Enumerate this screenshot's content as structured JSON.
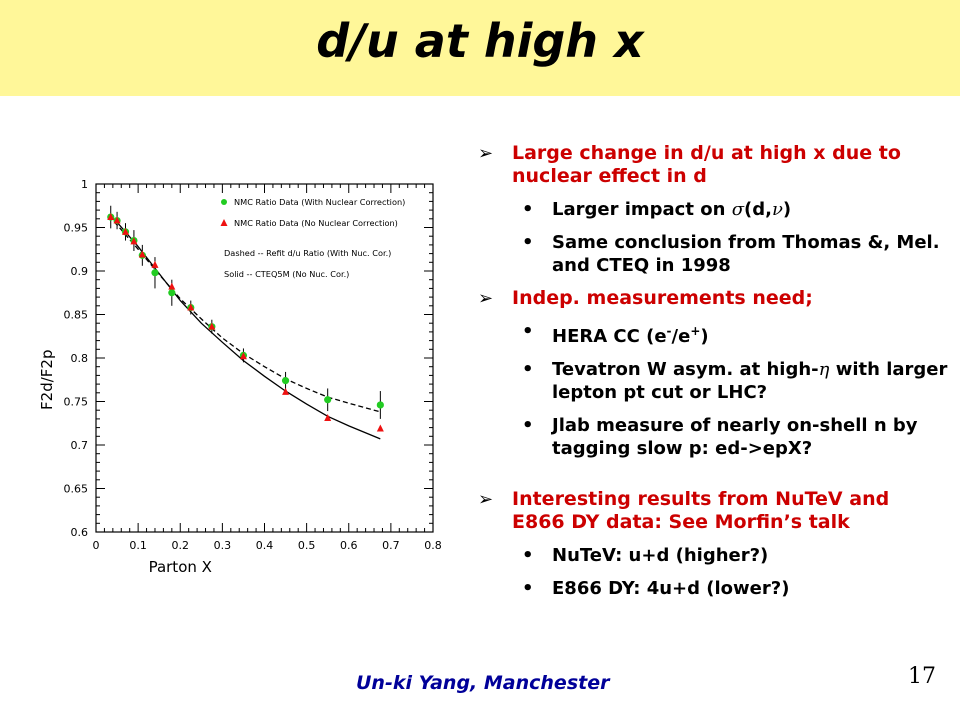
{
  "slide": {
    "title": "d/u at high x",
    "footer": "Un-ki Yang, Manchester",
    "page_number": "17"
  },
  "bullets": [
    {
      "level": 1,
      "parts": [
        {
          "t": "Large change  in d/u at high x due to nuclear effect in d"
        }
      ]
    },
    {
      "level": 2,
      "parts": [
        {
          "t": "Larger impact on "
        },
        {
          "t": "σ",
          "sym": true
        },
        {
          "t": "(d,"
        },
        {
          "t": "ν",
          "sym": true
        },
        {
          "t": ")"
        }
      ]
    },
    {
      "level": 2,
      "parts": [
        {
          "t": "Same conclusion from Thomas &, Mel. and CTEQ in 1998"
        }
      ]
    },
    {
      "level": 1,
      "parts": [
        {
          "t": "Indep. measurements need;"
        }
      ]
    },
    {
      "level": 2,
      "parts": [
        {
          "t": "HERA CC (e"
        },
        {
          "t": "-",
          "sup": true
        },
        {
          "t": "/e"
        },
        {
          "t": "+",
          "sup": true
        },
        {
          "t": ")"
        }
      ]
    },
    {
      "level": 2,
      "parts": [
        {
          "t": "Tevatron W asym. at high-"
        },
        {
          "t": "η",
          "sym": true
        },
        {
          "t": " with larger lepton pt cut or LHC?"
        }
      ]
    },
    {
      "level": 2,
      "parts": [
        {
          "t": "Jlab measure of nearly on-shell n by tagging slow p: ed->epX?"
        }
      ]
    },
    {
      "level": "gap"
    },
    {
      "level": 1,
      "parts": [
        {
          "t": "Interesting results from NuTeV and E866 DY data: See Morfin’s talk"
        }
      ]
    },
    {
      "level": 2,
      "parts": [
        {
          "t": "NuTeV: u+d (higher?)"
        }
      ]
    },
    {
      "level": 2,
      "parts": [
        {
          "t": "E866 DY: 4u+d (lower?)"
        }
      ]
    }
  ],
  "chart_data": {
    "type": "scatter",
    "xlabel": "Parton X",
    "ylabel": "F2d/F2p",
    "xlim": [
      0,
      0.8
    ],
    "ylim": [
      0.6,
      1.0
    ],
    "xticks": [
      "0",
      "0.1",
      "0.2",
      "0.3",
      "0.4",
      "0.5",
      "0.6",
      "0.7",
      "0.8"
    ],
    "yticks": [
      "0.6",
      "0.65",
      "0.7",
      "0.75",
      "0.8",
      "0.85",
      "0.9",
      "0.95",
      "1"
    ],
    "legend": [
      {
        "label": "NMC Ratio Data (With Nuclear Correction)",
        "marker": "circle",
        "color": "#22cc22"
      },
      {
        "label": "NMC Ratio Data (No Nuclear Correction)",
        "marker": "triangle",
        "color": "#ee1111"
      },
      {
        "label": "Dashed -- Refit d/u Ratio (With Nuc. Cor.)"
      },
      {
        "label": "Solid -- CTEQ5M (No Nuc. Cor.)"
      }
    ],
    "series": [
      {
        "name": "NMC Ratio Data (With Nuclear Correction)",
        "marker": "circle",
        "color": "#22cc22",
        "x": [
          0.035,
          0.05,
          0.07,
          0.09,
          0.11,
          0.14,
          0.18,
          0.225,
          0.275,
          0.35,
          0.45,
          0.55,
          0.675
        ],
        "y": [
          0.962,
          0.958,
          0.945,
          0.935,
          0.918,
          0.898,
          0.875,
          0.858,
          0.836,
          0.803,
          0.774,
          0.752,
          0.746
        ],
        "err": [
          0.013,
          0.01,
          0.01,
          0.012,
          0.012,
          0.018,
          0.015,
          0.008,
          0.008,
          0.008,
          0.01,
          0.013,
          0.016
        ]
      },
      {
        "name": "NMC Ratio Data (No Nuclear Correction)",
        "marker": "triangle",
        "color": "#ee1111",
        "x": [
          0.035,
          0.05,
          0.07,
          0.09,
          0.11,
          0.14,
          0.18,
          0.225,
          0.275,
          0.35,
          0.45,
          0.55,
          0.675
        ],
        "y": [
          0.962,
          0.958,
          0.945,
          0.934,
          0.919,
          0.907,
          0.882,
          0.858,
          0.836,
          0.802,
          0.761,
          0.731,
          0.719
        ],
        "err": [
          0,
          0,
          0,
          0,
          0,
          0,
          0,
          0,
          0,
          0,
          0,
          0,
          0
        ]
      }
    ],
    "curves": [
      {
        "name": "Dashed -- Refit d/u Ratio (With Nuc. Cor.)",
        "style": "dashed",
        "x": [
          0.03,
          0.05,
          0.1,
          0.15,
          0.2,
          0.25,
          0.3,
          0.35,
          0.4,
          0.45,
          0.5,
          0.55,
          0.6,
          0.675
        ],
        "y": [
          0.963,
          0.953,
          0.925,
          0.896,
          0.868,
          0.845,
          0.823,
          0.805,
          0.79,
          0.776,
          0.765,
          0.755,
          0.748,
          0.738
        ]
      },
      {
        "name": "Solid -- CTEQ5M (No Nuc. Cor.)",
        "style": "solid",
        "x": [
          0.03,
          0.05,
          0.1,
          0.15,
          0.2,
          0.25,
          0.3,
          0.35,
          0.4,
          0.45,
          0.5,
          0.55,
          0.6,
          0.675
        ],
        "y": [
          0.965,
          0.956,
          0.928,
          0.897,
          0.866,
          0.84,
          0.818,
          0.797,
          0.779,
          0.762,
          0.747,
          0.733,
          0.722,
          0.707
        ]
      }
    ]
  }
}
